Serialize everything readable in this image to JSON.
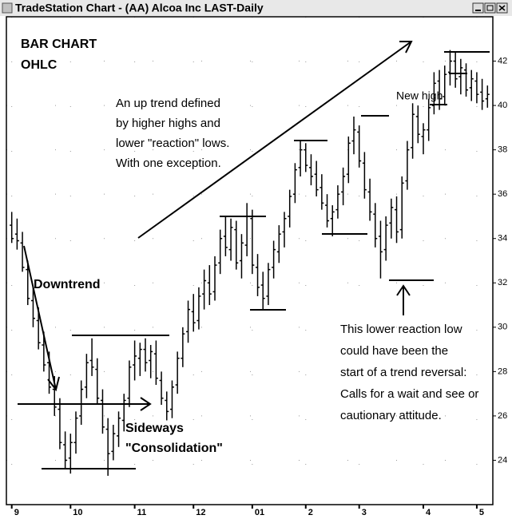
{
  "window_title": "TradeStation Chart - (AA) Alcoa Inc LAST-Daily",
  "chart_data": {
    "type": "ohlc",
    "title": "BAR CHART",
    "subtitle": "OHLC",
    "annotations": {
      "uptrend": [
        "An  up trend defined",
        "by higher highs and",
        "lower \"reaction\" lows.",
        "With one exception."
      ],
      "downtrend": "Downtrend",
      "sideways": [
        "Sideways",
        "\"Consolidation\""
      ],
      "new_high": "New high",
      "reversal": [
        "This lower reaction low",
        "could have been the",
        "start of a trend reversal:",
        "Calls for a wait and see or",
        "cautionary attitude."
      ]
    },
    "color": "#000000",
    "open": [
      34.6,
      34.2,
      33.8,
      32.6,
      31.2,
      30.3,
      29.2,
      28.4,
      27.2,
      26.3,
      24.7,
      24.1,
      24.8,
      26.0,
      27.3,
      28.5,
      28.1,
      26.7,
      25.4,
      24.4,
      25.1,
      25.8,
      26.8,
      28.3,
      28.6,
      29.0,
      28.5,
      28.8,
      27.6,
      26.7,
      26.3,
      27.4,
      28.6,
      29.8,
      30.7,
      30.3,
      31.5,
      32.0,
      31.6,
      32.9,
      34.1,
      33.5,
      34.4,
      33.0,
      33.7,
      34.9,
      32.7,
      31.9,
      31.4,
      32.7,
      33.4,
      34.3,
      35.0,
      36.0,
      37.2,
      38.0,
      37.2,
      36.9,
      36.3,
      35.5,
      34.9,
      35.3,
      36.1,
      36.9,
      38.4,
      38.8,
      37.4,
      36.1,
      35.1,
      34.1,
      33.5,
      34.7,
      35.3,
      34.4,
      36.6,
      38.1,
      39.5,
      38.6,
      38.9,
      40.0,
      41.1,
      40.4,
      41.5,
      42.0,
      41.3,
      41.6,
      40.8,
      41.1,
      40.6,
      40.3
    ],
    "high": [
      35.2,
      34.9,
      34.3,
      33.0,
      31.8,
      30.9,
      29.8,
      28.9,
      27.8,
      26.8,
      25.3,
      25.2,
      26.2,
      27.6,
      28.8,
      29.5,
      28.6,
      27.2,
      25.9,
      25.6,
      26.2,
      27.0,
      28.5,
      29.4,
      29.3,
      29.5,
      29.2,
      29.4,
      28.0,
      27.1,
      27.6,
      28.9,
      30.0,
      31.2,
      31.5,
      31.8,
      32.6,
      32.8,
      33.2,
      34.4,
      35.0,
      34.9,
      34.8,
      34.2,
      35.6,
      35.3,
      33.3,
      32.5,
      32.9,
      33.9,
      34.6,
      35.2,
      36.2,
      37.4,
      38.4,
      38.3,
      37.8,
      37.5,
      36.9,
      36.0,
      35.5,
      36.4,
      37.2,
      38.6,
      39.5,
      39.1,
      37.9,
      36.7,
      35.6,
      34.8,
      35.0,
      35.8,
      35.9,
      36.8,
      38.4,
      40.1,
      40.0,
      39.2,
      40.3,
      41.5,
      41.6,
      41.8,
      42.5,
      42.4,
      42.1,
      41.9,
      41.6,
      41.5,
      41.2,
      40.9
    ],
    "low": [
      33.8,
      33.5,
      32.5,
      31.0,
      30.0,
      29.0,
      28.0,
      27.0,
      26.0,
      24.5,
      23.6,
      23.4,
      24.3,
      25.6,
      26.8,
      27.8,
      26.5,
      25.2,
      23.3,
      24.0,
      24.6,
      25.3,
      26.4,
      27.6,
      27.8,
      28.0,
      27.7,
      27.4,
      26.5,
      25.8,
      25.9,
      27.0,
      28.2,
      29.3,
      29.8,
      29.9,
      30.8,
      31.0,
      31.2,
      32.4,
      33.2,
      33.0,
      32.6,
      32.2,
      33.2,
      32.4,
      31.4,
      30.8,
      31.0,
      32.2,
      32.9,
      33.6,
      34.5,
      35.6,
      36.8,
      37.0,
      36.4,
      35.9,
      35.3,
      34.5,
      34.1,
      34.9,
      35.5,
      36.5,
      37.8,
      37.2,
      35.8,
      34.8,
      33.6,
      32.2,
      33.0,
      34.0,
      33.8,
      34.0,
      36.2,
      37.6,
      38.3,
      37.8,
      38.4,
      39.6,
      39.8,
      40.0,
      40.9,
      40.8,
      40.5,
      40.4,
      40.2,
      40.1,
      39.8,
      39.9
    ],
    "close": [
      34.0,
      33.9,
      32.7,
      31.3,
      30.4,
      29.3,
      28.3,
      27.3,
      26.4,
      24.8,
      24.0,
      24.8,
      25.9,
      27.2,
      28.4,
      28.2,
      26.8,
      25.5,
      24.3,
      25.2,
      25.9,
      26.7,
      28.2,
      28.7,
      29.0,
      28.4,
      28.9,
      27.7,
      26.8,
      26.2,
      27.3,
      28.6,
      29.7,
      30.8,
      30.2,
      31.4,
      32.1,
      31.5,
      32.8,
      34.0,
      33.6,
      34.5,
      32.9,
      33.8,
      35.0,
      32.8,
      31.8,
      31.3,
      32.6,
      33.5,
      34.2,
      34.9,
      35.9,
      37.1,
      38.0,
      37.3,
      36.8,
      36.2,
      35.6,
      34.8,
      35.2,
      36.0,
      36.8,
      38.3,
      38.9,
      37.5,
      36.2,
      35.2,
      34.0,
      33.4,
      34.6,
      35.4,
      34.3,
      36.5,
      38.0,
      39.6,
      38.7,
      38.9,
      39.9,
      41.0,
      40.3,
      41.4,
      42.0,
      41.2,
      41.7,
      40.7,
      41.2,
      40.5,
      40.2,
      40.5
    ],
    "xlim": [
      -1,
      90
    ],
    "xticks": [
      {
        "value": 0,
        "label": "9"
      },
      {
        "value": 11,
        "label": "10"
      },
      {
        "value": 23,
        "label": "11"
      },
      {
        "value": 34,
        "label": "12"
      },
      {
        "value": 45,
        "label": "01"
      },
      {
        "value": 55,
        "label": "2"
      },
      {
        "value": 65,
        "label": "3"
      },
      {
        "value": 77,
        "label": "4"
      },
      {
        "value": 87,
        "label": "5"
      }
    ],
    "ylim": [
      22,
      44
    ],
    "yticks": [
      24,
      26,
      28,
      30,
      32,
      34,
      36,
      38,
      40,
      42
    ],
    "grid": true
  }
}
